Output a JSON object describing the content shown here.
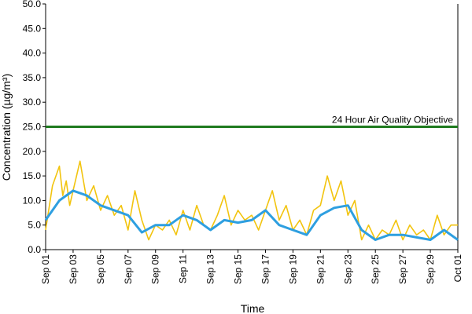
{
  "chart_data": {
    "type": "line",
    "title": "",
    "xlabel": "Time",
    "ylabel": "Concentration (µg/m³)",
    "ylim": [
      0,
      50
    ],
    "yticks": [
      "0.0",
      "5.0",
      "10.0",
      "15.0",
      "20.0",
      "25.0",
      "30.0",
      "35.0",
      "40.0",
      "45.0",
      "50.0"
    ],
    "xlim": [
      "Sep 01",
      "Oct 01"
    ],
    "xtick_labels": [
      "Sep 01",
      "Sep 03",
      "Sep 05",
      "Sep 07",
      "Sep 09",
      "Sep 11",
      "Sep 13",
      "Sep 15",
      "Sep 17",
      "Sep 19",
      "Sep 21",
      "Sep 23",
      "Sep 25",
      "Sep 27",
      "Sep 29",
      "Oct 01"
    ],
    "grid": false,
    "legend": "none",
    "reference_line": {
      "label": "24 Hour Air Quality Objective",
      "value": 25,
      "color": "#1f7a1f"
    },
    "colors": {
      "hourly": "#f2c40f",
      "daily": "#2e9fe0",
      "reference": "#1f7a1f"
    },
    "series": [
      {
        "color": "#f2c40f",
        "kind": "hourly",
        "x": [
          "Sep 01",
          "Sep 01 12:00",
          "Sep 02",
          "Sep 02 06:00",
          "Sep 02 12:00",
          "Sep 02 18:00",
          "Sep 03",
          "Sep 03 12:00",
          "Sep 04",
          "Sep 04 12:00",
          "Sep 05",
          "Sep 05 12:00",
          "Sep 06",
          "Sep 06 12:00",
          "Sep 07",
          "Sep 07 12:00",
          "Sep 08",
          "Sep 08 12:00",
          "Sep 09",
          "Sep 09 12:00",
          "Sep 10",
          "Sep 10 12:00",
          "Sep 11",
          "Sep 11 12:00",
          "Sep 12",
          "Sep 12 12:00",
          "Sep 13",
          "Sep 13 12:00",
          "Sep 14",
          "Sep 14 12:00",
          "Sep 15",
          "Sep 15 12:00",
          "Sep 16",
          "Sep 16 12:00",
          "Sep 17",
          "Sep 17 12:00",
          "Sep 18",
          "Sep 18 12:00",
          "Sep 19",
          "Sep 19 12:00",
          "Sep 20",
          "Sep 20 12:00",
          "Sep 21",
          "Sep 21 12:00",
          "Sep 22",
          "Sep 22 12:00",
          "Sep 23",
          "Sep 23 12:00",
          "Sep 24",
          "Sep 24 12:00",
          "Sep 25",
          "Sep 25 12:00",
          "Sep 26",
          "Sep 26 12:00",
          "Sep 27",
          "Sep 27 12:00",
          "Sep 28",
          "Sep 28 12:00",
          "Sep 29",
          "Sep 29 12:00",
          "Sep 30",
          "Sep 30 12:00",
          "Oct 01"
        ],
        "values": [
          4,
          13,
          17,
          11,
          14,
          9,
          12,
          18,
          10,
          13,
          8,
          11,
          7,
          9,
          4,
          12,
          6,
          2,
          5,
          4,
          6,
          3,
          8,
          4,
          9,
          5,
          4,
          7,
          11,
          5,
          8,
          6,
          7,
          4,
          8,
          12,
          6,
          9,
          4,
          6,
          3,
          8,
          9,
          15,
          10,
          14,
          7,
          10,
          2,
          5,
          2,
          4,
          3,
          6,
          2,
          5,
          3,
          4,
          2,
          7,
          3,
          5,
          5
        ]
      },
      {
        "color": "#2e9fe0",
        "kind": "daily",
        "x": [
          "Sep 01",
          "Sep 02",
          "Sep 03",
          "Sep 04",
          "Sep 05",
          "Sep 06",
          "Sep 07",
          "Sep 08",
          "Sep 09",
          "Sep 10",
          "Sep 11",
          "Sep 12",
          "Sep 13",
          "Sep 14",
          "Sep 15",
          "Sep 16",
          "Sep 17",
          "Sep 18",
          "Sep 19",
          "Sep 20",
          "Sep 21",
          "Sep 22",
          "Sep 23",
          "Sep 24",
          "Sep 25",
          "Sep 26",
          "Sep 27",
          "Sep 28",
          "Sep 29",
          "Sep 30",
          "Oct 01"
        ],
        "values": [
          6,
          10,
          12,
          11,
          9,
          8,
          7,
          3.5,
          5,
          5,
          7,
          6,
          4,
          6,
          5.5,
          6,
          8,
          5,
          4,
          3,
          7,
          8.5,
          9,
          4,
          2,
          3,
          3,
          2.5,
          2,
          4,
          2
        ]
      }
    ]
  }
}
